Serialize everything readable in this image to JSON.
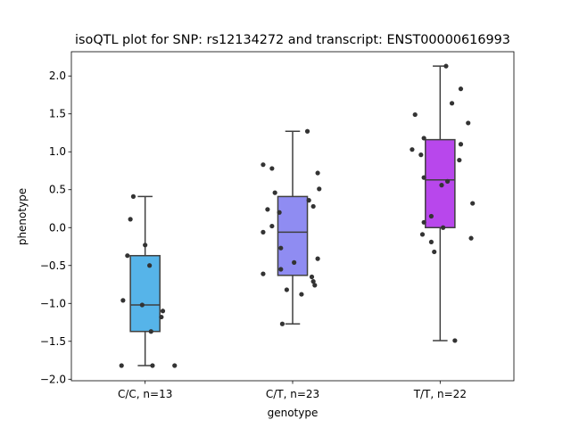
{
  "chart_data": {
    "type": "box",
    "title": "isoQTL plot for SNP: rs12134272 and transcript: ENST00000616993",
    "xlabel": "genotype",
    "ylabel": "phenotype",
    "ylim": [
      -2.02,
      2.32
    ],
    "yticks": [
      -2.0,
      -1.5,
      -1.0,
      -0.5,
      0.0,
      0.5,
      1.0,
      1.5,
      2.0
    ],
    "ytick_labels": [
      "−2.0",
      "−1.5",
      "−1.0",
      "−0.5",
      "0.0",
      "0.5",
      "1.0",
      "1.5",
      "2.0"
    ],
    "grid": false,
    "groups": [
      {
        "label": "C/C, n=13",
        "color": "#56b4e9",
        "whisker_low": -1.82,
        "q1": -1.37,
        "median": -1.02,
        "q3": -0.37,
        "whisker_high": 0.41,
        "points": [
          {
            "dx": -0.08,
            "y": 0.41
          },
          {
            "dx": -0.1,
            "y": 0.11
          },
          {
            "dx": 0.0,
            "y": -0.23
          },
          {
            "dx": -0.12,
            "y": -0.37
          },
          {
            "dx": 0.03,
            "y": -0.5
          },
          {
            "dx": -0.15,
            "y": -0.96
          },
          {
            "dx": -0.02,
            "y": -1.02
          },
          {
            "dx": 0.12,
            "y": -1.1
          },
          {
            "dx": 0.11,
            "y": -1.18
          },
          {
            "dx": 0.04,
            "y": -1.37
          },
          {
            "dx": -0.16,
            "y": -1.82
          },
          {
            "dx": 0.05,
            "y": -1.82
          },
          {
            "dx": 0.2,
            "y": -1.82
          }
        ]
      },
      {
        "label": "C/T, n=23",
        "color": "#8f8cf2",
        "whisker_low": -1.27,
        "q1": -0.63,
        "median": -0.06,
        "q3": 0.41,
        "whisker_high": 1.27,
        "points": [
          {
            "dx": 0.1,
            "y": 1.27
          },
          {
            "dx": -0.2,
            "y": 0.83
          },
          {
            "dx": -0.14,
            "y": 0.78
          },
          {
            "dx": 0.17,
            "y": 0.72
          },
          {
            "dx": 0.18,
            "y": 0.51
          },
          {
            "dx": -0.12,
            "y": 0.46
          },
          {
            "dx": 0.11,
            "y": 0.36
          },
          {
            "dx": 0.14,
            "y": 0.28
          },
          {
            "dx": -0.17,
            "y": 0.24
          },
          {
            "dx": -0.09,
            "y": 0.2
          },
          {
            "dx": -0.14,
            "y": 0.02
          },
          {
            "dx": -0.2,
            "y": -0.06
          },
          {
            "dx": -0.08,
            "y": -0.27
          },
          {
            "dx": 0.17,
            "y": -0.41
          },
          {
            "dx": 0.01,
            "y": -0.46
          },
          {
            "dx": -0.08,
            "y": -0.55
          },
          {
            "dx": -0.2,
            "y": -0.61
          },
          {
            "dx": 0.13,
            "y": -0.65
          },
          {
            "dx": 0.14,
            "y": -0.71
          },
          {
            "dx": 0.15,
            "y": -0.76
          },
          {
            "dx": -0.04,
            "y": -0.82
          },
          {
            "dx": 0.06,
            "y": -0.88
          },
          {
            "dx": -0.07,
            "y": -1.27
          }
        ]
      },
      {
        "label": "T/T, n=22",
        "color": "#b847ec",
        "whisker_low": -1.49,
        "q1": 0.0,
        "median": 0.63,
        "q3": 1.16,
        "whisker_high": 2.13,
        "points": [
          {
            "dx": 0.04,
            "y": 2.13
          },
          {
            "dx": 0.14,
            "y": 1.83
          },
          {
            "dx": 0.08,
            "y": 1.64
          },
          {
            "dx": -0.17,
            "y": 1.49
          },
          {
            "dx": 0.19,
            "y": 1.38
          },
          {
            "dx": -0.11,
            "y": 1.18
          },
          {
            "dx": 0.14,
            "y": 1.1
          },
          {
            "dx": -0.19,
            "y": 1.03
          },
          {
            "dx": -0.13,
            "y": 0.96
          },
          {
            "dx": 0.13,
            "y": 0.89
          },
          {
            "dx": -0.11,
            "y": 0.66
          },
          {
            "dx": 0.05,
            "y": 0.61
          },
          {
            "dx": 0.01,
            "y": 0.56
          },
          {
            "dx": 0.22,
            "y": 0.32
          },
          {
            "dx": -0.06,
            "y": 0.15
          },
          {
            "dx": -0.11,
            "y": 0.07
          },
          {
            "dx": 0.02,
            "y": 0.0
          },
          {
            "dx": -0.12,
            "y": -0.09
          },
          {
            "dx": -0.06,
            "y": -0.19
          },
          {
            "dx": 0.21,
            "y": -0.14
          },
          {
            "dx": -0.04,
            "y": -0.32
          },
          {
            "dx": 0.1,
            "y": -1.49
          }
        ]
      }
    ]
  }
}
